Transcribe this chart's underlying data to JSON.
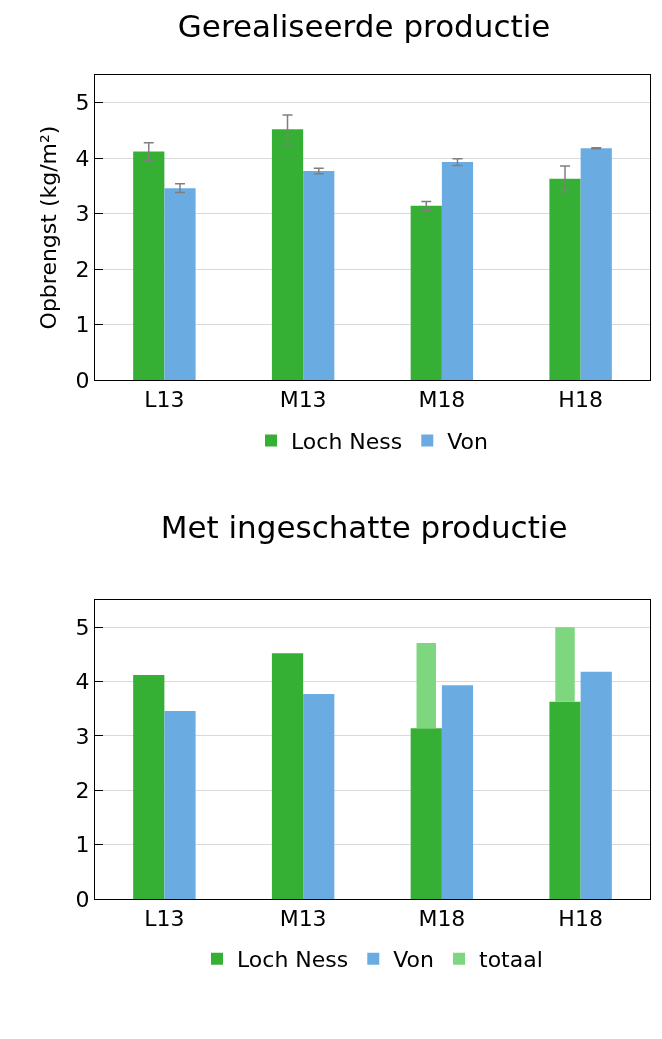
{
  "chart_data": [
    {
      "type": "bar",
      "title": "Gerealiseerde productie",
      "ylabel": "Opbrengst (kg/m²)",
      "categories": [
        "L13",
        "M13",
        "M18",
        "H18"
      ],
      "series": [
        {
          "name": "Loch Ness",
          "color": "#36b034",
          "values": [
            4.12,
            4.52,
            3.14,
            3.63
          ],
          "errors": [
            0.16,
            0.26,
            0.08,
            0.23
          ]
        },
        {
          "name": "Von",
          "color": "#6aace2",
          "values": [
            3.46,
            3.77,
            3.93,
            4.18
          ],
          "errors": [
            0.08,
            0.05,
            0.06,
            0.01
          ]
        }
      ],
      "ylim": [
        0,
        5.5
      ],
      "yticks": [
        0,
        1,
        2,
        3,
        4,
        5
      ],
      "grid": "y",
      "legend": "bottom"
    },
    {
      "type": "bar",
      "title": "Met ingeschatte productie",
      "categories": [
        "L13",
        "M13",
        "M18",
        "H18"
      ],
      "series": [
        {
          "name": "Loch Ness",
          "color": "#36b034",
          "values": [
            4.12,
            4.52,
            3.14,
            3.63
          ]
        },
        {
          "name": "Von",
          "color": "#6aace2",
          "values": [
            3.46,
            3.77,
            3.93,
            4.18
          ]
        },
        {
          "name": "totaal",
          "color": "#7ed67e",
          "values": [
            null,
            null,
            1.57,
            1.37
          ],
          "base": [
            null,
            null,
            3.14,
            3.63
          ]
        }
      ],
      "ylim": [
        0,
        5.5
      ],
      "yticks": [
        0,
        1,
        2,
        3,
        4,
        5
      ],
      "grid": "y",
      "legend": "bottom"
    }
  ]
}
